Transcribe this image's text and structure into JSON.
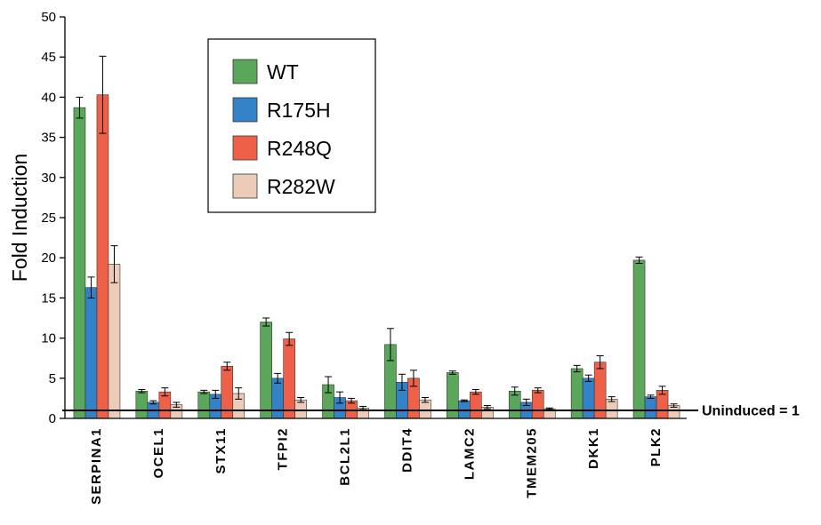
{
  "chart_data": {
    "type": "bar",
    "title": "",
    "xlabel": "",
    "ylabel": "Fold Induction",
    "ylim": [
      0,
      50
    ],
    "yticks": [
      0,
      5,
      10,
      15,
      20,
      25,
      30,
      35,
      40,
      45,
      50
    ],
    "categories": [
      "SERPINA1",
      "OCEL1",
      "STX11",
      "TFPI2",
      "BCL2L1",
      "DDIT4",
      "LAMC2",
      "TMEM205",
      "DKK1",
      "PLK2"
    ],
    "series": [
      {
        "name": "WT",
        "color": "#5aa65a",
        "values": [
          38.7,
          3.4,
          3.3,
          12.0,
          4.2,
          9.2,
          5.7,
          3.4,
          6.2,
          19.7
        ],
        "errors": [
          1.3,
          0.2,
          0.2,
          0.5,
          1.0,
          2.0,
          0.2,
          0.5,
          0.4,
          0.4
        ]
      },
      {
        "name": "R175H",
        "color": "#3382c8",
        "values": [
          16.3,
          2.0,
          3.0,
          5.0,
          2.6,
          4.5,
          2.2,
          2.0,
          5.0,
          2.7
        ],
        "errors": [
          1.3,
          0.2,
          0.5,
          0.6,
          0.7,
          1.0,
          0.1,
          0.4,
          0.4,
          0.2
        ]
      },
      {
        "name": "R248Q",
        "color": "#ee6048",
        "values": [
          40.3,
          3.3,
          6.5,
          9.9,
          2.2,
          5.0,
          3.3,
          3.5,
          7.0,
          3.5
        ],
        "errors": [
          4.8,
          0.5,
          0.5,
          0.8,
          0.3,
          1.0,
          0.3,
          0.3,
          0.8,
          0.5
        ]
      },
      {
        "name": "R282W",
        "color": "#ecccb8",
        "values": [
          19.2,
          1.7,
          3.1,
          2.3,
          1.3,
          2.3,
          1.4,
          1.2,
          2.4,
          1.6
        ],
        "errors": [
          2.3,
          0.3,
          0.7,
          0.3,
          0.2,
          0.3,
          0.2,
          0.1,
          0.3,
          0.2
        ]
      }
    ],
    "baseline": {
      "value": 1,
      "label": "Uninduced = 1"
    },
    "legend": "top-center",
    "grid": false
  }
}
